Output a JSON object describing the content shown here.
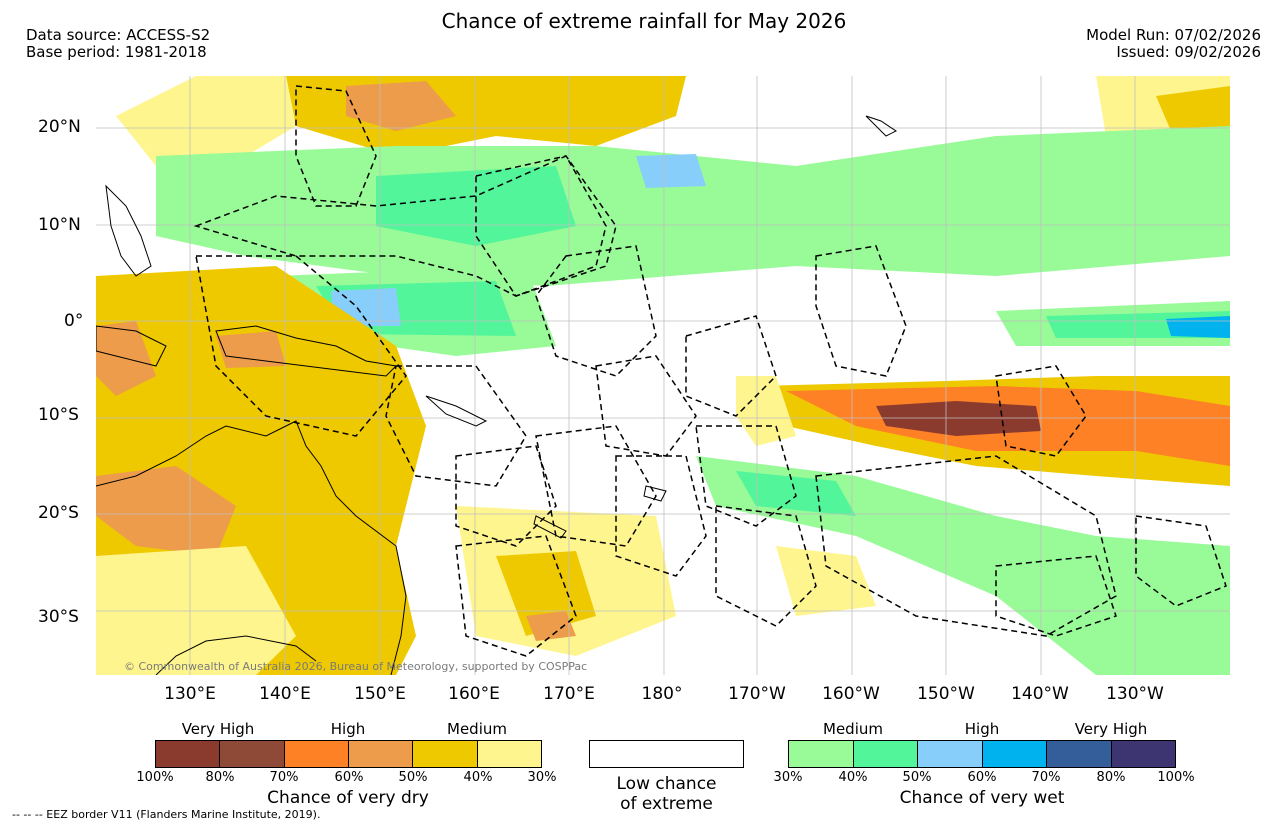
{
  "header": {
    "title": "Chance of extreme rainfall for May 2026",
    "data_source": "Data source: ACCESS-S2",
    "base_period": "Base period: 1981-2018",
    "model_run": "Model Run: 07/02/2026",
    "issued": "Issued: 09/02/2026"
  },
  "map": {
    "lat_labels": [
      "20°N",
      "10°N",
      "0°",
      "10°S",
      "20°S",
      "30°S"
    ],
    "lon_labels": [
      "130°E",
      "140°E",
      "150°E",
      "160°E",
      "170°E",
      "180°",
      "170°W",
      "160°W",
      "150°W",
      "140°W",
      "130°W"
    ],
    "copyright": "© Commonwealth of Australia 2026, Bureau of Meteorology, supported by COSPPac"
  },
  "legend": {
    "dry": {
      "categories": [
        "Very High",
        "High",
        "Medium"
      ],
      "ticks": [
        "100%",
        "80%",
        "70%",
        "60%",
        "50%",
        "40%",
        "30%"
      ],
      "caption": "Chance of very dry",
      "colors": [
        "#8b3a2e",
        "#8e4a36",
        "#ff8125",
        "#ed9c4b",
        "#eec900",
        "#fff58f"
      ]
    },
    "low": {
      "caption_line1": "Low chance",
      "caption_line2": "of extreme"
    },
    "wet": {
      "categories": [
        "Medium",
        "High",
        "Very High"
      ],
      "ticks": [
        "30%",
        "40%",
        "50%",
        "60%",
        "70%",
        "80%",
        "100%"
      ],
      "caption": "Chance of very wet",
      "colors": [
        "#98fb98",
        "#52f599",
        "#87cefa",
        "#00b2ee",
        "#335e99",
        "#3c3572"
      ]
    }
  },
  "footer": {
    "eez_note": "-- -- -- EEZ border V11 (Flanders Marine Institute, 2019)."
  }
}
